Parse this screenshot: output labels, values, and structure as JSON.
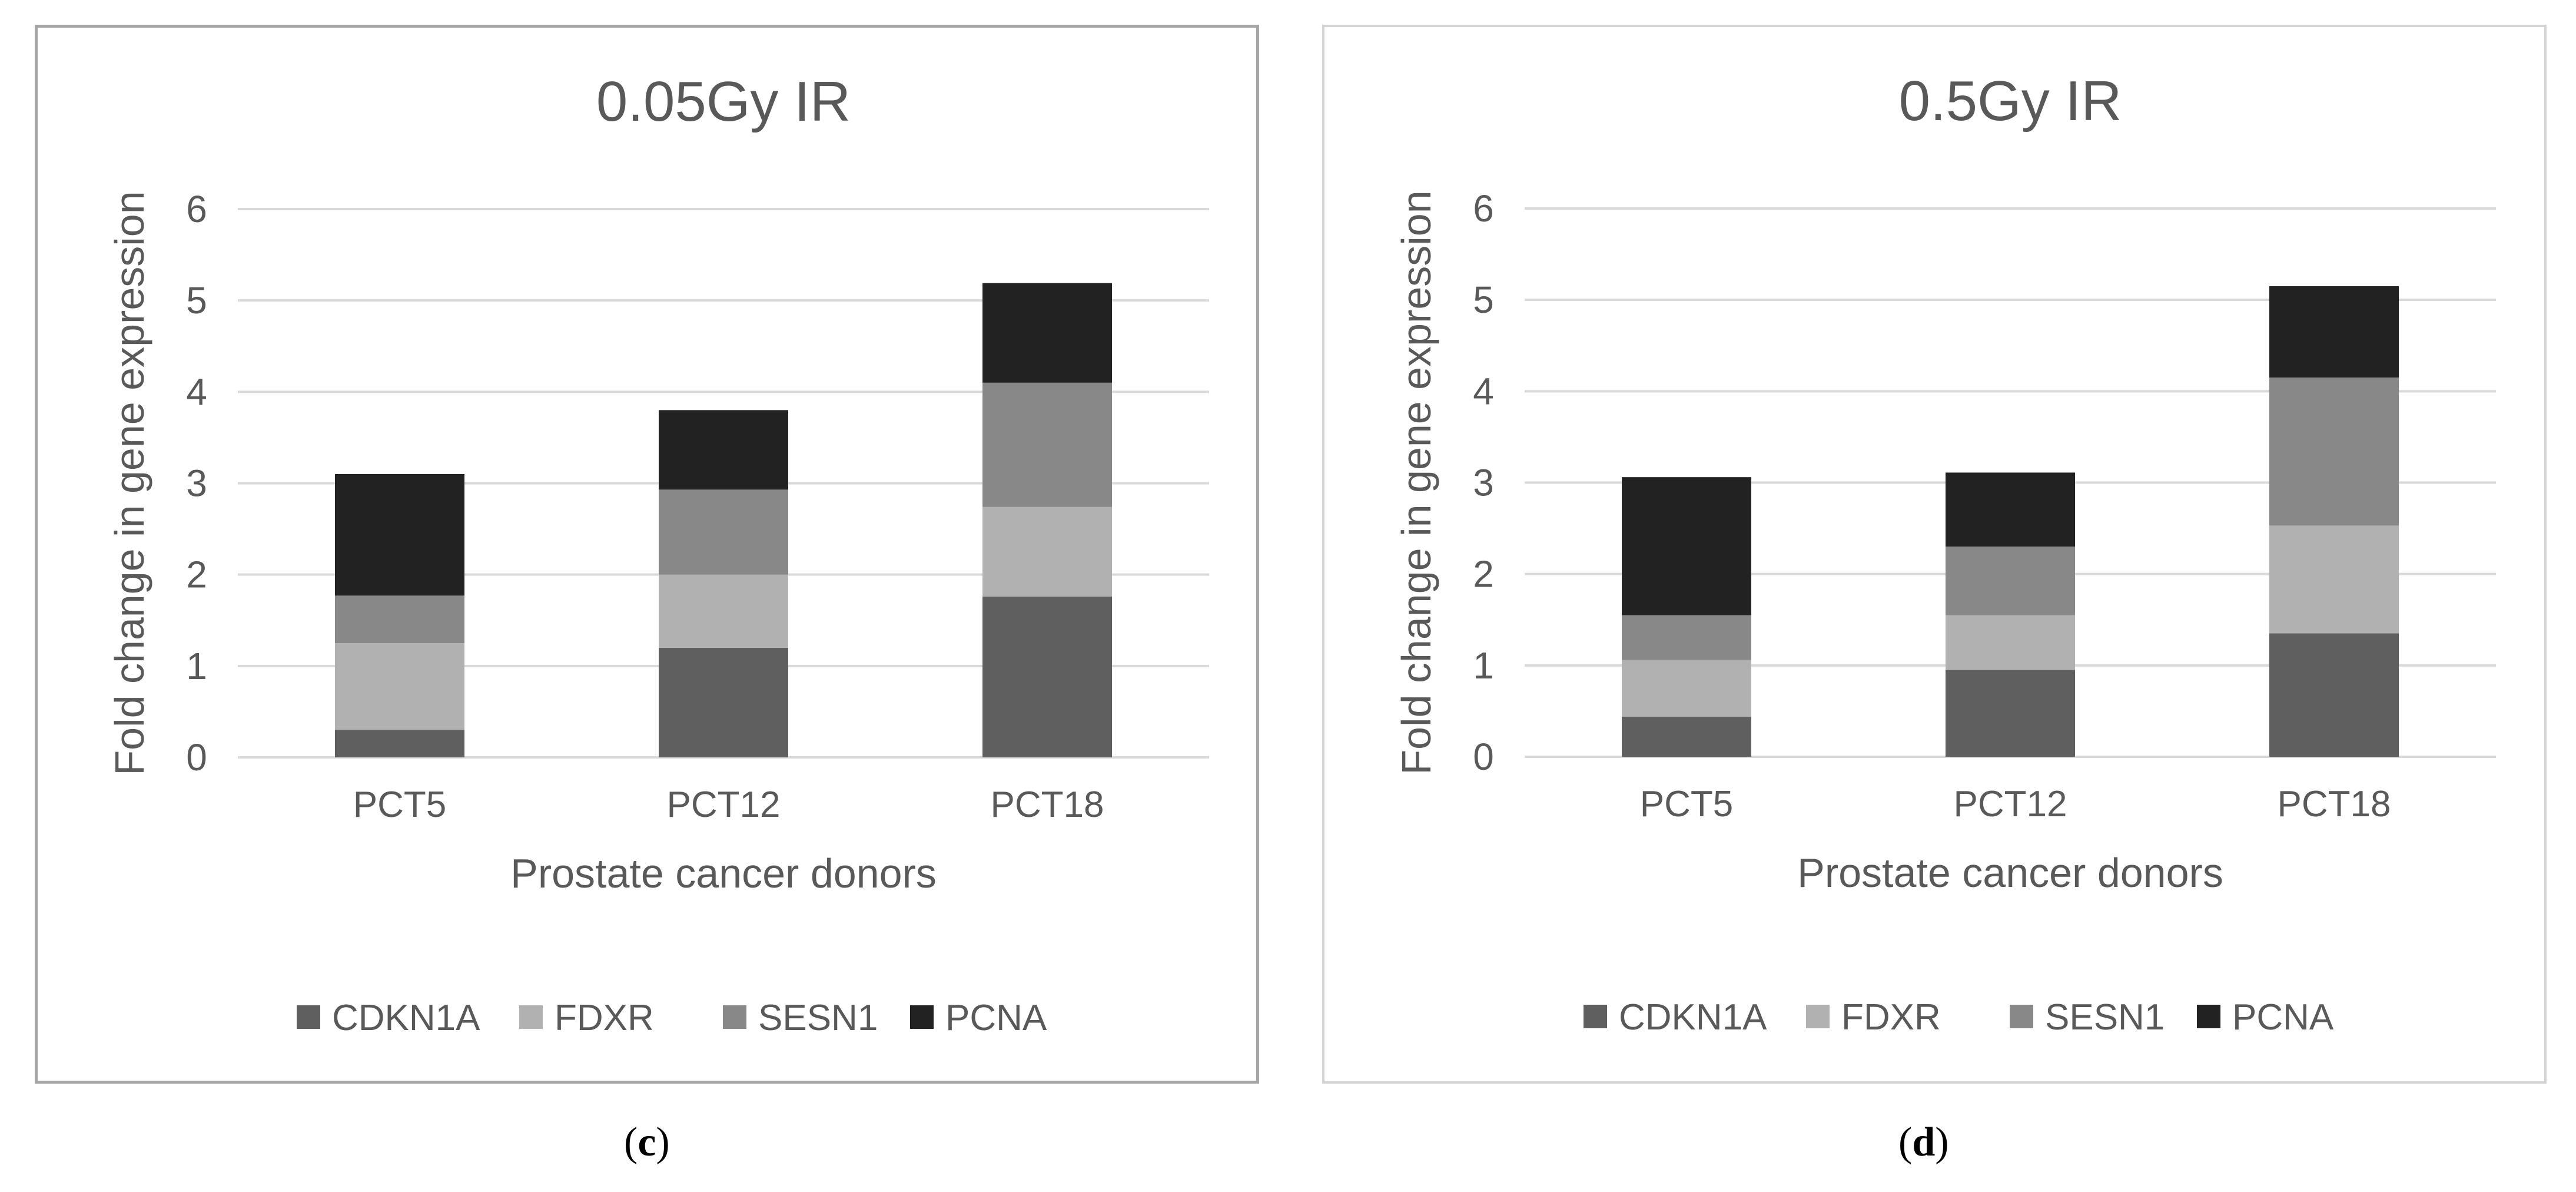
{
  "colors": {
    "CDKN1A": "#5f5f5f",
    "FDXR": "#b1b1b1",
    "SESN1": "#888888",
    "PCNA": "#222222",
    "grid": "#d9d9d9",
    "text": "#595959"
  },
  "captions": {
    "c": {
      "open": "(",
      "letter": "c",
      "close": ")"
    },
    "d": {
      "open": "(",
      "letter": "d",
      "close": ")"
    }
  },
  "chart_data": [
    {
      "type": "bar",
      "stacked": true,
      "title": "0.05Gy IR",
      "xlabel": "Prostate cancer donors",
      "ylabel": "Fold change in gene expression",
      "ylim": [
        0,
        6
      ],
      "yticks": [
        "0",
        "1",
        "2",
        "3",
        "4",
        "5",
        "6"
      ],
      "grid": true,
      "legend_position": "bottom",
      "categories": [
        "PCT5",
        "PCT12",
        "PCT18"
      ],
      "series": [
        {
          "name": "CDKN1A",
          "values": [
            0.3,
            1.2,
            1.76
          ]
        },
        {
          "name": "FDXR",
          "values": [
            0.95,
            0.8,
            0.98
          ]
        },
        {
          "name": "SESN1",
          "values": [
            0.52,
            0.93,
            1.36
          ]
        },
        {
          "name": "PCNA",
          "values": [
            1.33,
            0.87,
            1.09
          ]
        }
      ]
    },
    {
      "type": "bar",
      "stacked": true,
      "title": "0.5Gy IR",
      "xlabel": "Prostate cancer donors",
      "ylabel": "Fold change in gene expression",
      "ylim": [
        0,
        6
      ],
      "yticks": [
        "0",
        "1",
        "2",
        "3",
        "4",
        "5",
        "6"
      ],
      "grid": true,
      "legend_position": "bottom",
      "categories": [
        "PCT5",
        "PCT12",
        "PCT18"
      ],
      "series": [
        {
          "name": "CDKN1A",
          "values": [
            0.44,
            0.95,
            1.35
          ]
        },
        {
          "name": "FDXR",
          "values": [
            0.62,
            0.6,
            1.18
          ]
        },
        {
          "name": "SESN1",
          "values": [
            0.49,
            0.75,
            1.62
          ]
        },
        {
          "name": "PCNA",
          "values": [
            1.51,
            0.81,
            1.0
          ]
        }
      ]
    }
  ]
}
